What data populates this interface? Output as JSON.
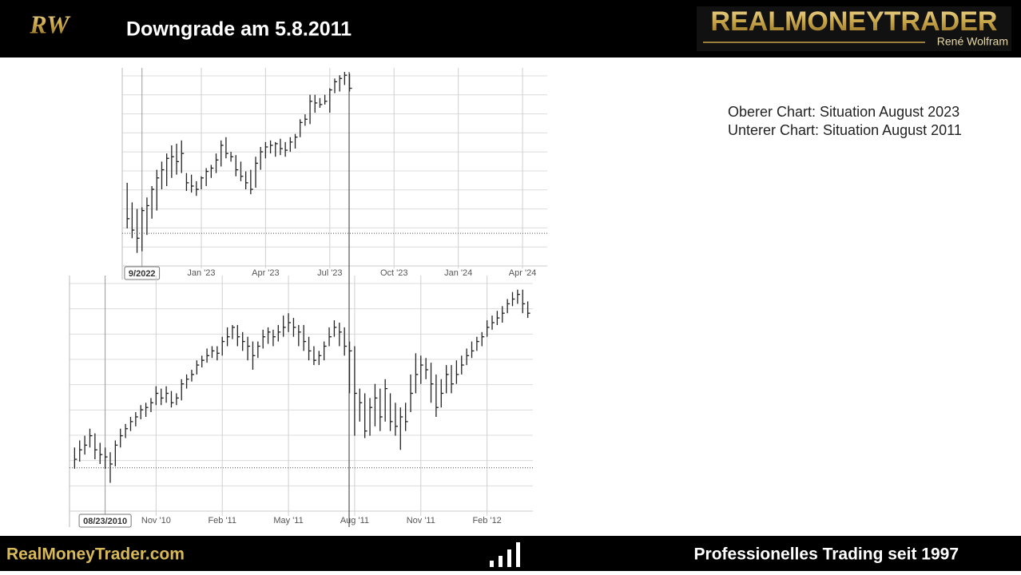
{
  "header": {
    "logo": "RW",
    "title": "Downgrade am 5.8.2011",
    "brand": "REALMONEYTRADER",
    "brand_sub": "René Wolfram"
  },
  "notes": [
    "Oberer Chart: Situation August 2023",
    "Unterer Chart: Situation August 2011"
  ],
  "footer": {
    "left": "RealMoneyTrader.com",
    "right": "Professionelles Trading seit 1997"
  },
  "chart_data": [
    {
      "type": "ohlc",
      "x": [
        -15,
        -14,
        -13,
        -12,
        -11,
        -10,
        -9,
        -8,
        -7,
        -6,
        -5,
        -4,
        -3,
        -2,
        -1,
        0,
        1,
        2,
        3,
        4,
        5,
        6,
        7,
        8,
        9,
        10,
        11,
        12,
        13,
        14,
        15,
        16,
        17,
        18,
        19,
        20,
        21,
        22,
        23,
        24,
        25,
        26,
        27,
        28,
        29,
        30
      ],
      "high": [
        3920,
        3800,
        3760,
        3770,
        3830,
        3900,
        4000,
        4050,
        4100,
        4150,
        4160,
        4180,
        3980,
        3970,
        3930,
        3960,
        4010,
        4030,
        4100,
        4180,
        4200,
        4110,
        4090,
        4050,
        3990,
        4000,
        4080,
        4140,
        4170,
        4180,
        4170,
        4190,
        4170,
        4200,
        4220,
        4310,
        4340,
        4460,
        4460,
        4440,
        4460,
        4500,
        4560,
        4580,
        4600,
        4590
      ],
      "low": [
        3640,
        3580,
        3490,
        3500,
        3600,
        3700,
        3750,
        3880,
        3900,
        3950,
        3970,
        3980,
        3870,
        3860,
        3840,
        3880,
        3900,
        3950,
        3980,
        4020,
        4070,
        4050,
        3960,
        3930,
        3880,
        3850,
        3890,
        4000,
        4070,
        4100,
        4080,
        4090,
        4080,
        4110,
        4130,
        4200,
        4270,
        4280,
        4350,
        4380,
        4400,
        4350,
        4470,
        4480,
        4520,
        4480
      ],
      "close": [
        3700,
        3630,
        3580,
        3750,
        3780,
        3880,
        3950,
        4000,
        4070,
        4080,
        4050,
        4100,
        3920,
        3900,
        3880,
        3950,
        3990,
        4010,
        4060,
        4150,
        4100,
        4080,
        4000,
        3960,
        3920,
        3880,
        4040,
        4110,
        4140,
        4150,
        4160,
        4130,
        4120,
        4170,
        4200,
        4290,
        4310,
        4420,
        4410,
        4400,
        4420,
        4490,
        4540,
        4560,
        4580,
        4500
      ],
      "xlim": [
        -16,
        70
      ],
      "ylim": [
        3410,
        4625
      ],
      "xticks": [
        {
          "value": 0,
          "label": "Jan '23"
        },
        {
          "value": 13,
          "label": "Apr '23"
        },
        {
          "value": 26,
          "label": "Jul '23"
        },
        {
          "value": 39,
          "label": "Oct '23"
        },
        {
          "value": 52,
          "label": "Jan '24"
        },
        {
          "value": 65,
          "label": "Apr '24"
        }
      ],
      "hline": 3610,
      "cursor": {
        "x": -12,
        "label": "9/2022"
      },
      "color": "#222222"
    },
    {
      "type": "ohlc",
      "x": [
        -16,
        -15,
        -14,
        -13,
        -12,
        -11,
        -10,
        -9,
        -8,
        -7,
        -6,
        -5,
        -4,
        -3,
        -2,
        -1,
        0,
        1,
        2,
        3,
        4,
        5,
        6,
        7,
        8,
        9,
        10,
        11,
        12,
        13,
        14,
        15,
        16,
        17,
        18,
        19,
        20,
        21,
        22,
        23,
        24,
        25,
        26,
        27,
        28,
        29,
        30,
        31,
        32,
        33,
        34,
        35,
        36,
        37,
        38,
        39,
        40,
        41,
        42,
        43,
        44,
        45,
        46,
        47,
        48,
        49,
        50,
        51,
        52,
        53,
        54,
        55,
        56,
        57,
        58,
        59,
        60,
        61,
        62,
        63,
        64,
        65,
        66,
        67,
        68,
        69,
        70,
        71,
        72,
        73
      ],
      "high": [
        1085,
        1100,
        1110,
        1125,
        1115,
        1095,
        1085,
        1075,
        1100,
        1125,
        1135,
        1150,
        1160,
        1175,
        1180,
        1190,
        1215,
        1210,
        1215,
        1205,
        1200,
        1230,
        1240,
        1250,
        1270,
        1280,
        1295,
        1300,
        1300,
        1320,
        1340,
        1345,
        1345,
        1330,
        1320,
        1310,
        1310,
        1335,
        1340,
        1335,
        1345,
        1365,
        1370,
        1360,
        1345,
        1345,
        1320,
        1300,
        1290,
        1310,
        1340,
        1355,
        1350,
        1340,
        1310,
        1300,
        1210,
        1200,
        1190,
        1220,
        1210,
        1230,
        1200,
        1180,
        1170,
        1180,
        1240,
        1285,
        1280,
        1275,
        1265,
        1240,
        1230,
        1260,
        1260,
        1270,
        1280,
        1295,
        1310,
        1320,
        1330,
        1355,
        1365,
        1375,
        1385,
        1400,
        1415,
        1420,
        1420,
        1395
      ],
      "low": [
        1040,
        1055,
        1070,
        1085,
        1060,
        1050,
        1040,
        1010,
        1045,
        1085,
        1105,
        1120,
        1130,
        1145,
        1150,
        1160,
        1175,
        1175,
        1180,
        1170,
        1175,
        1185,
        1210,
        1225,
        1240,
        1255,
        1265,
        1275,
        1270,
        1280,
        1300,
        1315,
        1300,
        1290,
        1270,
        1250,
        1275,
        1295,
        1305,
        1300,
        1310,
        1320,
        1330,
        1320,
        1300,
        1290,
        1270,
        1260,
        1260,
        1270,
        1300,
        1320,
        1300,
        1280,
        1200,
        1110,
        1140,
        1105,
        1110,
        1130,
        1120,
        1140,
        1120,
        1110,
        1080,
        1120,
        1160,
        1200,
        1220,
        1230,
        1180,
        1150,
        1170,
        1200,
        1200,
        1220,
        1240,
        1260,
        1275,
        1290,
        1300,
        1320,
        1335,
        1345,
        1350,
        1370,
        1385,
        1390,
        1370,
        1360
      ],
      "close": [
        1060,
        1080,
        1090,
        1110,
        1080,
        1070,
        1065,
        1050,
        1090,
        1110,
        1125,
        1140,
        1150,
        1165,
        1170,
        1180,
        1200,
        1190,
        1200,
        1180,
        1190,
        1220,
        1230,
        1240,
        1260,
        1270,
        1280,
        1290,
        1285,
        1310,
        1320,
        1340,
        1320,
        1310,
        1300,
        1280,
        1300,
        1320,
        1330,
        1320,
        1330,
        1340,
        1350,
        1340,
        1330,
        1310,
        1290,
        1270,
        1280,
        1300,
        1320,
        1340,
        1330,
        1300,
        1290,
        1200,
        1180,
        1120,
        1170,
        1190,
        1150,
        1210,
        1140,
        1130,
        1150,
        1140,
        1200,
        1240,
        1260,
        1250,
        1220,
        1170,
        1200,
        1240,
        1220,
        1240,
        1260,
        1280,
        1290,
        1310,
        1320,
        1340,
        1350,
        1360,
        1370,
        1390,
        1400,
        1410,
        1390,
        1370
      ],
      "xlim": [
        -17,
        74
      ],
      "ylim": [
        950,
        1450
      ],
      "xticks": [
        {
          "value": 0,
          "label": "Nov '10"
        },
        {
          "value": 13,
          "label": "Feb '11"
        },
        {
          "value": 26,
          "label": "May '11"
        },
        {
          "value": 39,
          "label": "Aug '11"
        },
        {
          "value": 52,
          "label": "Nov '11"
        },
        {
          "value": 65,
          "label": "Feb '12"
        }
      ],
      "hline": 1042,
      "cursor": {
        "x": -10,
        "label": "08/23/2010"
      },
      "color": "#222222"
    }
  ]
}
